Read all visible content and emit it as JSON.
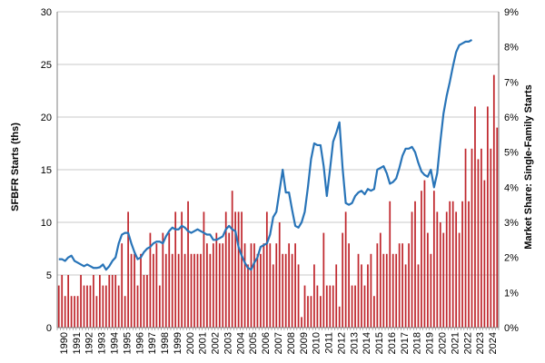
{
  "chart_data": {
    "type": "bar",
    "title": "",
    "xlabel": "",
    "ylabel": "SFBFR Starts (ths)",
    "y2label": "Market Share: Single-Family Starts",
    "ylim": [
      0,
      30
    ],
    "y2lim": [
      0,
      9
    ],
    "grid": true,
    "legend": "none",
    "colors": {
      "bars": "#c0282e",
      "line": "#2874b8",
      "grid": "#c8c8c8",
      "axis": "#7f7f7f"
    },
    "yticks": [
      "0",
      "5",
      "10",
      "15",
      "20",
      "25",
      "30"
    ],
    "y2ticks": [
      "0%",
      "1%",
      "2%",
      "3%",
      "4%",
      "5%",
      "6%",
      "7%",
      "8%",
      "9%"
    ],
    "xticks": [
      "1990",
      "1991",
      "1992",
      "1993",
      "1994",
      "1995",
      "1996",
      "1997",
      "1998",
      "1999",
      "2000",
      "2001",
      "2002",
      "2003",
      "2004",
      "2005",
      "2006",
      "2007",
      "2008",
      "2009",
      "2010",
      "2011",
      "2012",
      "2013",
      "2014",
      "2015",
      "2016",
      "2017",
      "2018",
      "2019",
      "2020",
      "2021",
      "2022",
      "2023",
      "2024"
    ],
    "x_period": "quarterly, 1990 Q1 - 2024 Q4",
    "series": [
      {
        "name": "SFBFR Starts (ths)",
        "type": "bar",
        "axis": "left",
        "values": [
          4,
          5,
          3,
          5,
          3,
          3,
          3,
          5,
          4,
          4,
          4,
          5,
          3,
          5,
          4,
          4,
          5,
          5,
          5,
          4,
          8,
          3,
          11,
          7,
          7,
          4,
          7,
          5,
          5,
          9,
          7,
          8,
          4,
          9,
          7,
          9,
          7,
          11,
          7,
          11,
          7,
          12,
          7,
          7,
          7,
          7,
          11,
          8,
          7,
          8,
          9,
          8,
          8,
          11,
          9,
          13,
          11,
          11,
          11,
          8,
          6,
          8,
          8,
          7,
          7,
          8,
          11,
          8,
          6,
          8,
          10,
          7,
          7,
          8,
          7,
          8,
          6,
          1,
          4,
          3,
          3,
          6,
          4,
          3,
          9,
          4,
          4,
          4,
          6,
          2,
          9,
          11,
          8,
          4,
          4,
          7,
          6,
          4,
          6,
          7,
          3,
          8,
          9,
          7,
          7,
          12,
          7,
          7,
          8,
          8,
          6,
          8,
          11,
          12,
          6,
          13,
          14,
          9,
          7,
          13,
          11,
          10,
          9,
          11,
          12,
          12,
          11,
          9,
          12,
          17,
          12,
          17,
          21,
          16,
          17,
          14,
          21,
          17,
          24,
          19
        ]
      },
      {
        "name": "Market Share: Single-Family Starts",
        "type": "line",
        "axis": "right",
        "values": [
          1.95,
          1.95,
          1.9,
          2.0,
          2.05,
          1.9,
          1.85,
          1.8,
          1.75,
          1.8,
          1.75,
          1.7,
          1.7,
          1.72,
          1.8,
          1.65,
          1.75,
          1.9,
          2.0,
          2.4,
          2.65,
          2.7,
          2.7,
          2.4,
          2.15,
          1.95,
          2.0,
          2.15,
          2.25,
          2.3,
          2.4,
          2.45,
          2.45,
          2.4,
          2.6,
          2.75,
          2.85,
          2.8,
          2.8,
          2.9,
          2.85,
          2.75,
          2.7,
          2.75,
          2.8,
          2.75,
          2.7,
          2.65,
          2.65,
          2.5,
          2.5,
          2.55,
          2.6,
          2.8,
          2.9,
          2.8,
          2.75,
          2.3,
          2.05,
          1.85,
          1.7,
          1.65,
          1.85,
          2.0,
          2.3,
          2.35,
          2.4,
          2.65,
          3.15,
          3.3,
          3.9,
          4.5,
          3.85,
          3.85,
          3.35,
          2.9,
          2.85,
          3.0,
          3.3,
          4.0,
          4.8,
          5.25,
          5.2,
          5.2,
          4.6,
          3.75,
          4.5,
          5.3,
          5.55,
          5.85,
          4.55,
          3.55,
          3.5,
          3.55,
          3.75,
          3.85,
          3.9,
          3.8,
          3.95,
          3.9,
          3.95,
          4.5,
          4.55,
          4.6,
          4.4,
          4.1,
          4.15,
          4.25,
          4.55,
          4.9,
          5.1,
          5.1,
          5.15,
          5.0,
          4.7,
          4.45,
          4.35,
          4.3,
          4.5,
          4.0,
          4.4,
          5.3,
          6.1,
          6.6,
          7.0,
          7.45,
          7.85,
          8.05,
          8.1,
          8.15,
          8.15,
          8.2
        ]
      }
    ]
  }
}
